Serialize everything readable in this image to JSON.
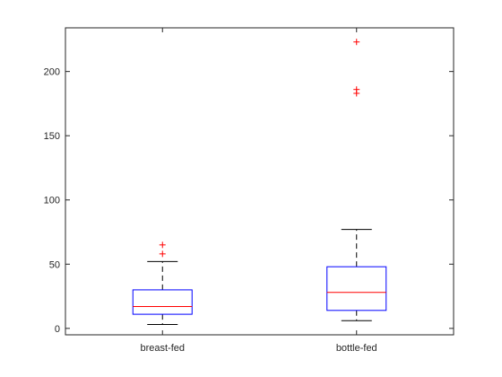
{
  "chart_data": {
    "type": "boxplot",
    "title": "",
    "xlabel": "",
    "ylabel": "",
    "categories": [
      "breast-fed",
      "bottle-fed"
    ],
    "ylim": [
      -5,
      234
    ],
    "yticks": [
      0,
      50,
      100,
      150,
      200
    ],
    "grid": false,
    "legend": "none",
    "colors": {
      "box": "#0000ff",
      "median": "#ff0000",
      "whisker": "#000000",
      "outlier": "#ff0000",
      "axis": "#262626"
    },
    "boxes": [
      {
        "label": "breast-fed",
        "whisker_low": 3,
        "q1": 11,
        "median": 17,
        "q3": 30,
        "whisker_high": 52,
        "outliers": [
          58,
          65
        ]
      },
      {
        "label": "bottle-fed",
        "whisker_low": 6,
        "q1": 14,
        "median": 28,
        "q3": 48,
        "whisker_high": 77,
        "outliers": [
          183,
          186,
          223
        ]
      }
    ]
  }
}
